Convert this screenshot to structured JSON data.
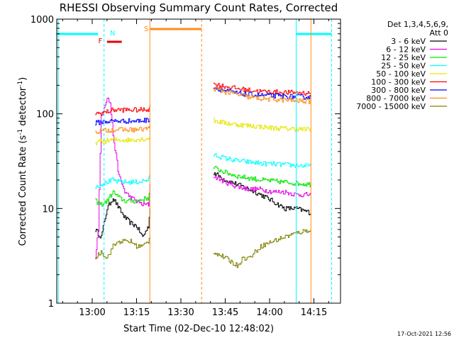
{
  "chart_data": {
    "type": "line",
    "title": "RHESSI Observing Summary Count Rates, Corrected",
    "xlabel": "Start Time (02-Dec-10 12:48:02)",
    "ylabel": "Corrected Count Rate (s",
    "ylabel_sup": "-1",
    "ylabel_mid": " detector",
    "ylabel_tail": ")",
    "yscale": "log",
    "xlim_min": [
      0,
      96
    ],
    "ylim": [
      1,
      1000
    ],
    "x_ticks": [
      {
        "min": 12,
        "label": "13:00"
      },
      {
        "min": 27,
        "label": "13:15"
      },
      {
        "min": 42,
        "label": "13:30"
      },
      {
        "min": 57,
        "label": "13:45"
      },
      {
        "min": 72,
        "label": "14:00"
      },
      {
        "min": 87,
        "label": "14:15"
      }
    ],
    "y_ticks": [
      {
        "val": 1,
        "label": "1"
      },
      {
        "val": 10,
        "label": "10"
      },
      {
        "val": 100,
        "label": "100"
      },
      {
        "val": 1000,
        "label": "1000"
      }
    ],
    "legend_header_1": "Det 1,3,4,5,6,9,",
    "legend_header_2": "Att 0",
    "legend_position": "top-right",
    "footer_date": "17-Oct-2021 12:56",
    "markers": [
      {
        "label": "N",
        "color": "#00ffff",
        "x_start": 0,
        "x_end": 16,
        "x_label": 18
      },
      {
        "label": "F",
        "color": "#e60000",
        "x_start": 17,
        "x_end": 22,
        "x_label": 15
      },
      {
        "label": "S",
        "color": "#ff8c1a",
        "x_start": 31.5,
        "x_end": 49,
        "x_label": 30
      }
    ],
    "night_cyan": [
      [
        16,
        16
      ],
      [
        81,
        96
      ]
    ],
    "series": [
      {
        "name": "3 - 6 keV",
        "color": "#000000",
        "segments": [
          [
            [
              13,
              6
            ],
            [
              15,
              5
            ],
            [
              17,
              10
            ],
            [
              19,
              13
            ],
            [
              21,
              10
            ],
            [
              23,
              8
            ],
            [
              25,
              7
            ],
            [
              27,
              6.5
            ],
            [
              29,
              5
            ],
            [
              31,
              6.5
            ],
            [
              31.5,
              10
            ]
          ],
          [
            [
              53,
              24
            ],
            [
              57,
              20
            ],
            [
              61,
              18
            ],
            [
              65,
              16
            ],
            [
              69,
              14
            ],
            [
              73,
              12
            ],
            [
              77,
              10
            ],
            [
              81,
              10
            ],
            [
              86,
              9
            ]
          ]
        ]
      },
      {
        "name": "6 - 12 keV",
        "color": "#e600e6",
        "segments": [
          [
            [
              13,
              3
            ],
            [
              14,
              6
            ],
            [
              15,
              95
            ],
            [
              17,
              150
            ],
            [
              18,
              130
            ],
            [
              19,
              60
            ],
            [
              21,
              22
            ],
            [
              23,
              15
            ],
            [
              25,
              13
            ],
            [
              27,
              12
            ],
            [
              29,
              11
            ],
            [
              31,
              11
            ],
            [
              31.5,
              18
            ]
          ],
          [
            [
              53,
              22
            ],
            [
              57,
              19
            ],
            [
              61,
              17
            ],
            [
              65,
              16
            ],
            [
              69,
              16
            ],
            [
              73,
              15
            ],
            [
              77,
              15
            ],
            [
              81,
              14
            ],
            [
              86,
              14
            ]
          ]
        ]
      },
      {
        "name": "12 - 25 keV",
        "color": "#00e600",
        "segments": [
          [
            [
              13,
              12
            ],
            [
              15,
              11
            ],
            [
              17,
              12
            ],
            [
              19,
              15
            ],
            [
              21,
              13
            ],
            [
              23,
              12
            ],
            [
              25,
              12
            ],
            [
              27,
              12
            ],
            [
              29,
              12.5
            ],
            [
              31,
              13
            ],
            [
              31.5,
              15
            ]
          ],
          [
            [
              53,
              27
            ],
            [
              57,
              24
            ],
            [
              61,
              22
            ],
            [
              65,
              21
            ],
            [
              69,
              20
            ],
            [
              73,
              19.5
            ],
            [
              77,
              19
            ],
            [
              81,
              18.5
            ],
            [
              86,
              18
            ]
          ]
        ]
      },
      {
        "name": "25 - 50 keV",
        "color": "#00ffff",
        "segments": [
          [
            [
              13,
              17
            ],
            [
              15,
              18
            ],
            [
              17,
              19
            ],
            [
              19,
              20
            ],
            [
              21,
              19
            ],
            [
              23,
              19
            ],
            [
              25,
              19
            ],
            [
              27,
              19
            ],
            [
              29,
              19.5
            ],
            [
              31,
              20
            ],
            [
              31.5,
              22
            ]
          ],
          [
            [
              53,
              37
            ],
            [
              57,
              34
            ],
            [
              61,
              32
            ],
            [
              65,
              31
            ],
            [
              69,
              30
            ],
            [
              73,
              29.5
            ],
            [
              77,
              29
            ],
            [
              81,
              28.5
            ],
            [
              86,
              28
            ]
          ]
        ]
      },
      {
        "name": "50 - 100 keV",
        "color": "#e6e600",
        "segments": [
          [
            [
              13,
              50
            ],
            [
              15,
              51
            ],
            [
              17,
              52
            ],
            [
              19,
              53
            ],
            [
              21,
              53
            ],
            [
              23,
              53
            ],
            [
              25,
              53
            ],
            [
              27,
              54
            ],
            [
              29,
              54
            ],
            [
              31,
              55
            ],
            [
              31.5,
              58
            ]
          ],
          [
            [
              53,
              85
            ],
            [
              57,
              80
            ],
            [
              61,
              77
            ],
            [
              65,
              75
            ],
            [
              69,
              73
            ],
            [
              73,
              71
            ],
            [
              77,
              70
            ],
            [
              81,
              69
            ],
            [
              86,
              68
            ]
          ]
        ]
      },
      {
        "name": "100 - 300 keV",
        "color": "#ff0000",
        "segments": [
          [
            [
              13,
              100
            ],
            [
              15,
              102
            ],
            [
              17,
              105
            ],
            [
              19,
              110
            ],
            [
              21,
              110
            ],
            [
              23,
              110
            ],
            [
              25,
              110
            ],
            [
              27,
              110
            ],
            [
              29,
              110
            ],
            [
              31,
              112
            ],
            [
              31.5,
              125
            ]
          ],
          [
            [
              53,
              205
            ],
            [
              57,
              195
            ],
            [
              61,
              185
            ],
            [
              65,
              178
            ],
            [
              69,
              172
            ],
            [
              73,
              170
            ],
            [
              77,
              168
            ],
            [
              81,
              168
            ],
            [
              86,
              165
            ]
          ]
        ]
      },
      {
        "name": "300 - 800 keV",
        "color": "#0000ff",
        "segments": [
          [
            [
              13,
              80
            ],
            [
              15,
              82
            ],
            [
              17,
              83
            ],
            [
              19,
              84
            ],
            [
              21,
              84
            ],
            [
              23,
              84
            ],
            [
              25,
              84
            ],
            [
              27,
              84
            ],
            [
              29,
              85
            ],
            [
              31,
              86
            ],
            [
              31.5,
              90
            ]
          ],
          [
            [
              53,
              190
            ],
            [
              57,
              175
            ],
            [
              61,
              165
            ],
            [
              65,
              160
            ],
            [
              69,
              157
            ],
            [
              73,
              155
            ],
            [
              77,
              153
            ],
            [
              81,
              152
            ],
            [
              86,
              150
            ]
          ]
        ]
      },
      {
        "name": "800 - 7000 keV",
        "color": "#ff8c1a",
        "segments": [
          [
            [
              13,
              65
            ],
            [
              15,
              66
            ],
            [
              17,
              67
            ],
            [
              19,
              68
            ],
            [
              21,
              68
            ],
            [
              23,
              68
            ],
            [
              25,
              68
            ],
            [
              27,
              68
            ],
            [
              29,
              69
            ],
            [
              31,
              70
            ],
            [
              31.5,
              75
            ]
          ],
          [
            [
              53,
              185
            ],
            [
              57,
              170
            ],
            [
              61,
              160
            ],
            [
              65,
              150
            ],
            [
              69,
              145
            ],
            [
              73,
              142
            ],
            [
              77,
              140
            ],
            [
              81,
              138
            ],
            [
              86,
              135
            ]
          ]
        ]
      },
      {
        "name": "7000 - 15000 keV",
        "color": "#808000",
        "segments": [
          [
            [
              13,
              3
            ],
            [
              15,
              3.5
            ],
            [
              17,
              3
            ],
            [
              19,
              4
            ],
            [
              21,
              4.5
            ],
            [
              23,
              4.5
            ],
            [
              25,
              4.5
            ],
            [
              27,
              4
            ],
            [
              29,
              4
            ],
            [
              31,
              4.5
            ],
            [
              31.5,
              5
            ]
          ],
          [
            [
              53,
              3.5
            ],
            [
              57,
              3
            ],
            [
              61,
              2.5
            ],
            [
              63,
              3
            ],
            [
              65,
              3
            ],
            [
              69,
              4
            ],
            [
              73,
              4.5
            ],
            [
              77,
              5
            ],
            [
              81,
              5.5
            ],
            [
              86,
              6
            ]
          ]
        ]
      }
    ]
  }
}
